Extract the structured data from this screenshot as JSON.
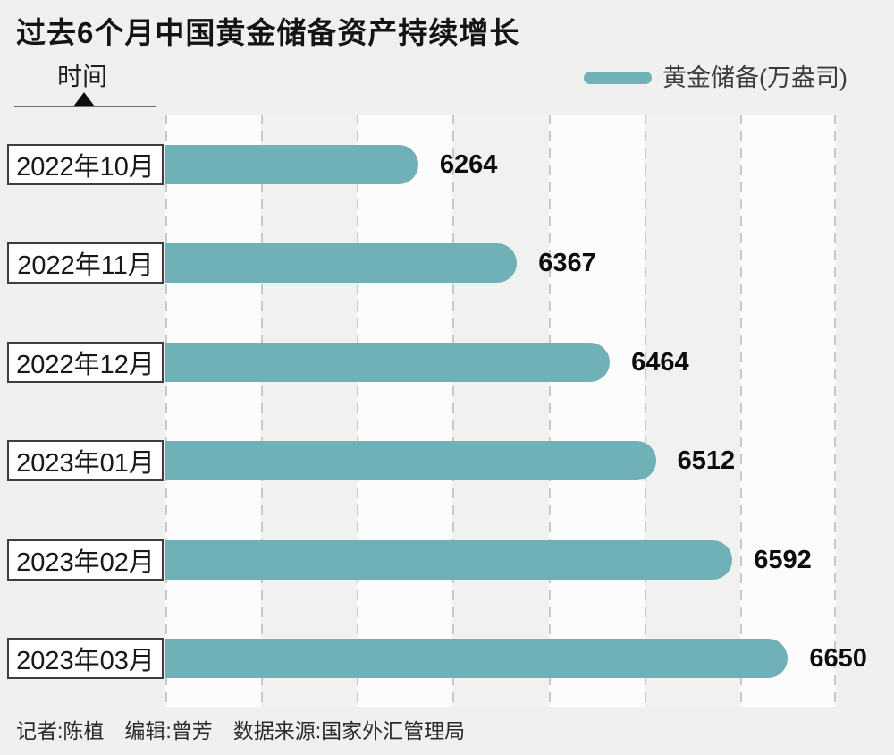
{
  "title": "过去6个月中国黄金储备资产持续增长",
  "axis": {
    "label": "时间"
  },
  "legend": {
    "label": "黄金储备(万盎司)"
  },
  "chart_data": {
    "type": "bar",
    "orientation": "horizontal",
    "title": "过去6个月中国黄金储备资产持续增长",
    "series_name": "黄金储备(万盎司)",
    "categories": [
      "2022年10月",
      "2022年11月",
      "2022年12月",
      "2023年01月",
      "2023年02月",
      "2023年03月"
    ],
    "values": [
      6264,
      6367,
      6464,
      6512,
      6592,
      6650
    ],
    "xlabel": "黄金储备(万盎司)",
    "ylabel": "时间",
    "xlim": [
      6000,
      6700
    ],
    "gridline_step": 100,
    "grid": "vertical-dashed",
    "legend_position": "top-right",
    "value_labels_shown": true
  },
  "footer": {
    "credits": "记者:陈植　编辑:曾芳　数据来源:国家外汇管理局"
  },
  "colors": {
    "background": "#f0f0ee",
    "bar": "#6fb1b7",
    "stripe_light": "#fcfcfc",
    "stripe_dark": "#f1f1ef",
    "gridline": "#c9c9c9",
    "text": "#141414"
  }
}
